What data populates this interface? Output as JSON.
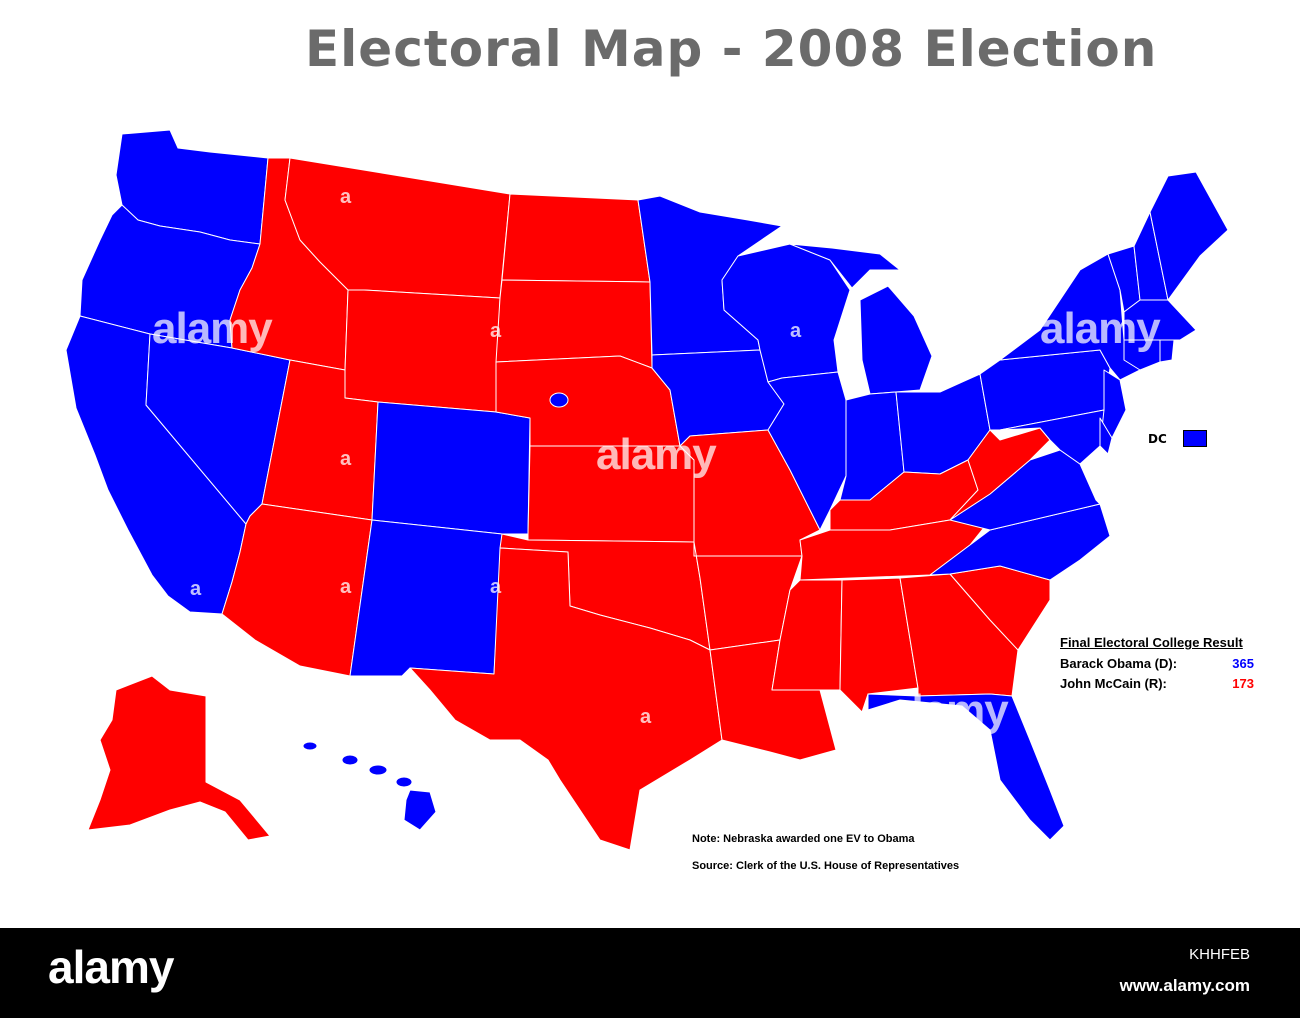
{
  "title": "Electoral Map - 2008 Election",
  "colors": {
    "democrat": "#0000ff",
    "republican": "#ff0000",
    "title": "#6b6b6b"
  },
  "legend": {
    "dc_label": "DC",
    "dc_color": "democrat"
  },
  "result": {
    "heading": "Final Electoral College Result",
    "candidates": [
      {
        "name": "Barack Obama (D):",
        "votes": "365",
        "party": "democrat"
      },
      {
        "name": "John McCain (R):",
        "votes": "173",
        "party": "republican"
      }
    ]
  },
  "notes": {
    "nebraska": "Note: Nebraska awarded one EV to Obama",
    "source": "Source: Clerk of the U.S. House of Representatives"
  },
  "watermark": {
    "text": "alamy",
    "letter": "a"
  },
  "footer": {
    "logo": "alamy",
    "image_id": "KHHFEB",
    "url": "www.alamy.com"
  },
  "states": {
    "WA": "democrat",
    "OR": "democrat",
    "CA": "democrat",
    "NV": "democrat",
    "ID": "republican",
    "MT": "republican",
    "WY": "republican",
    "UT": "republican",
    "AZ": "republican",
    "CO": "democrat",
    "NM": "democrat",
    "ND": "republican",
    "SD": "republican",
    "NE": "republican",
    "KS": "republican",
    "OK": "republican",
    "TX": "republican",
    "MN": "democrat",
    "IA": "democrat",
    "MO": "republican",
    "AR": "republican",
    "LA": "republican",
    "WI": "democrat",
    "IL": "democrat",
    "MI": "democrat",
    "IN": "democrat",
    "OH": "democrat",
    "KY": "republican",
    "TN": "republican",
    "MS": "republican",
    "AL": "republican",
    "GA": "republican",
    "FL": "democrat",
    "SC": "republican",
    "NC": "democrat",
    "VA": "democrat",
    "WV": "republican",
    "PA": "democrat",
    "NY": "democrat",
    "NJ": "democrat",
    "DE": "democrat",
    "MD": "democrat",
    "CT": "democrat",
    "RI": "democrat",
    "MA": "democrat",
    "VT": "democrat",
    "NH": "democrat",
    "ME": "democrat",
    "AK": "republican",
    "HI": "democrat",
    "NE2": "democrat"
  }
}
